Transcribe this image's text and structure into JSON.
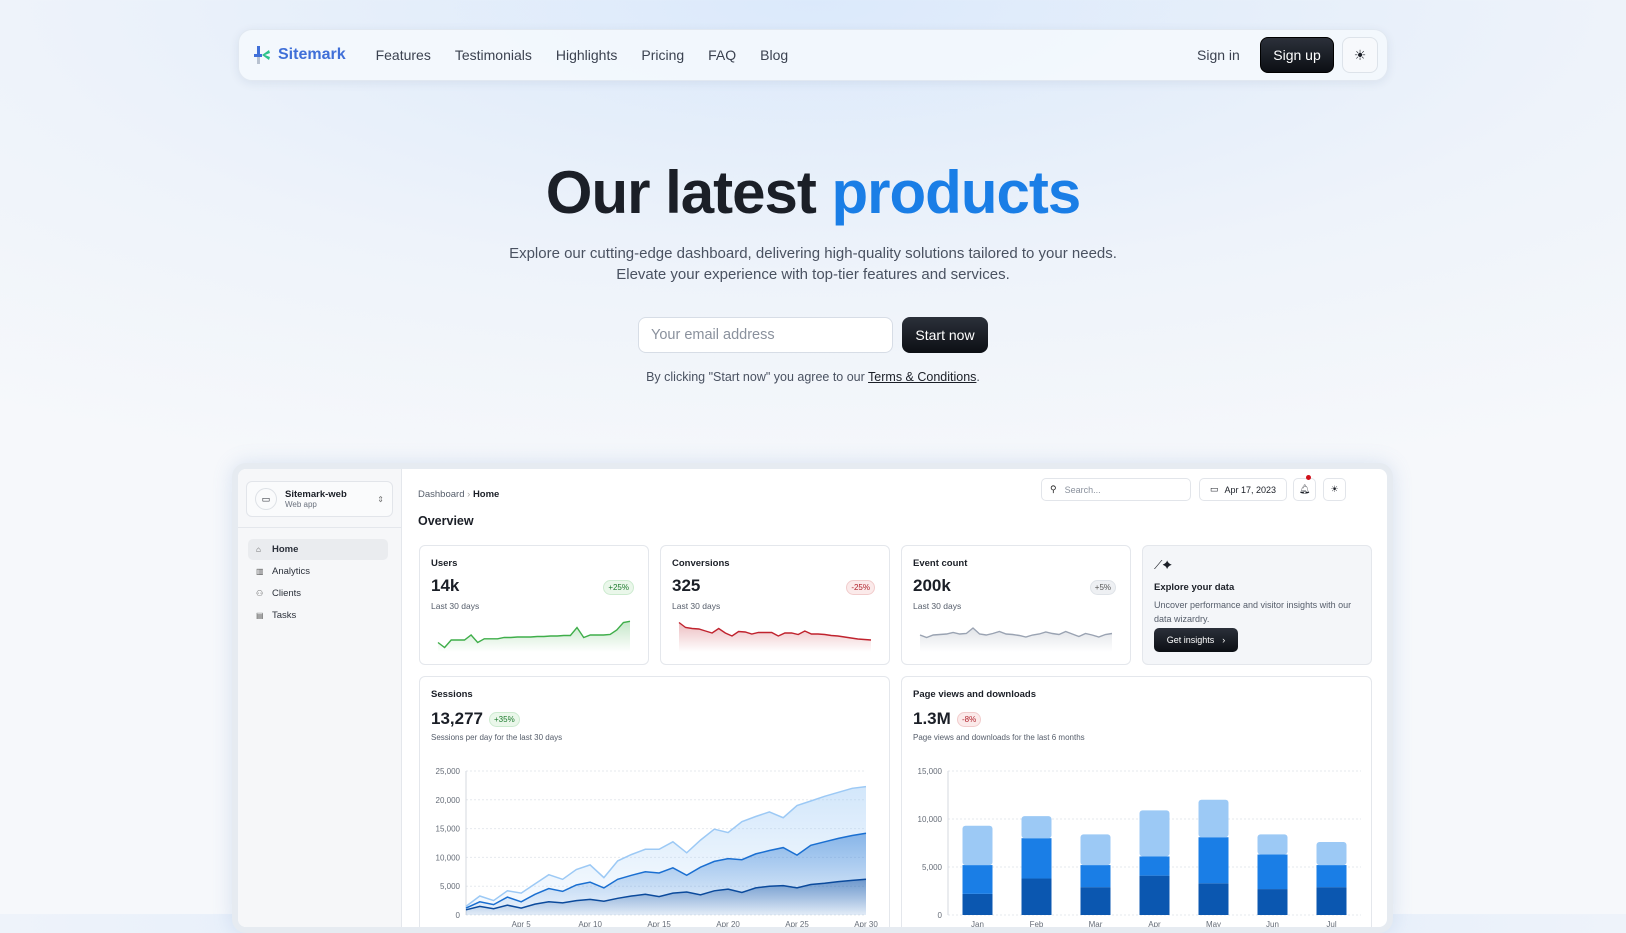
{
  "nav": {
    "brand": "Sitemark",
    "links": [
      "Features",
      "Testimonials",
      "Highlights",
      "Pricing",
      "FAQ",
      "Blog"
    ],
    "sign_in": "Sign in",
    "sign_up": "Sign up"
  },
  "hero": {
    "title_plain": "Our latest",
    "title_accent": "products",
    "subtitle_1": "Explore our cutting-edge dashboard, delivering high-quality solutions tailored to your needs.",
    "subtitle_2": "Elevate your experience with top-tier features and services.",
    "email_placeholder": "Your email address",
    "cta": "Start now",
    "terms_prefix": "By clicking \"Start now\" you agree to our",
    "terms_link": "Terms & Conditions",
    "terms_suffix": "."
  },
  "dashboard": {
    "project": {
      "name": "Sitemark-web",
      "type": "Web app"
    },
    "sidebar": [
      {
        "label": "Home",
        "icon": "home-icon",
        "active": true
      },
      {
        "label": "Analytics",
        "icon": "analytics-icon"
      },
      {
        "label": "Clients",
        "icon": "people-icon"
      },
      {
        "label": "Tasks",
        "icon": "clipboard-icon"
      }
    ],
    "breadcrumb": [
      "Dashboard",
      "Home"
    ],
    "heading": "Overview",
    "search_placeholder": "Search...",
    "date": "Apr 17, 2023",
    "stats": [
      {
        "title": "Users",
        "value": "14k",
        "badge": "+25%",
        "trend": "up",
        "period": "Last 30 days",
        "color": "#3fae4a",
        "spark": [
          3,
          1,
          4,
          4,
          4,
          6,
          3,
          4.5,
          4.5,
          4.5,
          5,
          5,
          5.2,
          5.2,
          5.2,
          5.4,
          5.4,
          5.6,
          5.6,
          5.8,
          5.8,
          9,
          5,
          6,
          6,
          6,
          6.2,
          8,
          11,
          11.5
        ]
      },
      {
        "title": "Conversions",
        "value": "325",
        "badge": "-25%",
        "trend": "down",
        "period": "Last 30 days",
        "color": "#c0232e",
        "spark": [
          11,
          9,
          8.6,
          8.4,
          7.6,
          6.8,
          8.6,
          6.8,
          5.6,
          7.4,
          7.2,
          6.4,
          7,
          7,
          7,
          5.6,
          6.8,
          6.8,
          6.2,
          7.6,
          6.4,
          6.4,
          6.2,
          5.8,
          5.6,
          5.2,
          4.8,
          4.4,
          4.2,
          4
        ]
      },
      {
        "title": "Event count",
        "value": "200k",
        "badge": "+5%",
        "trend": "neutral",
        "period": "Last 30 days",
        "color": "#9aa3b2",
        "spark": [
          6,
          5,
          6,
          6.2,
          6.4,
          7,
          6.4,
          6.6,
          8.8,
          6.4,
          6,
          6.6,
          7.4,
          6.4,
          6.2,
          5.8,
          5.2,
          6,
          6.4,
          7.2,
          6.6,
          6.2,
          7.4,
          6.4,
          5.4,
          6.6,
          6,
          5.2,
          6.2,
          6.6
        ]
      }
    ],
    "explore": {
      "title": "Explore your data",
      "text": "Uncover performance and visitor insights with our data wizardry.",
      "button": "Get insights"
    },
    "sessions": {
      "title": "Sessions",
      "value": "13,277",
      "badge": "+35%",
      "subtitle": "Sessions per day for the last 30 days"
    },
    "pageviews": {
      "title": "Page views and downloads",
      "value": "1.3M",
      "badge": "-8%",
      "subtitle": "Page views and downloads for the last 6 months"
    }
  },
  "chart_data": [
    {
      "type": "area",
      "ylim": [
        0,
        25000
      ],
      "yticks": [
        "0",
        "5,000",
        "10,000",
        "15,000",
        "20,000",
        "25,000"
      ],
      "xticks": [
        "Apr 5",
        "Apr 10",
        "Apr 15",
        "Apr 20",
        "Apr 25",
        "Apr 30"
      ],
      "grid": true,
      "x": [
        "Apr 1",
        "Apr 2",
        "Apr 3",
        "Apr 4",
        "Apr 5",
        "Apr 6",
        "Apr 7",
        "Apr 8",
        "Apr 9",
        "Apr 10",
        "Apr 11",
        "Apr 12",
        "Apr 13",
        "Apr 14",
        "Apr 15",
        "Apr 16",
        "Apr 17",
        "Apr 18",
        "Apr 19",
        "Apr 20",
        "Apr 21",
        "Apr 22",
        "Apr 23",
        "Apr 24",
        "Apr 25",
        "Apr 26",
        "Apr 27",
        "Apr 28",
        "Apr 29",
        "Apr 30"
      ],
      "series": [
        {
          "color": "#9cc9f5",
          "values": [
            1500,
            3300,
            2500,
            4200,
            3800,
            5400,
            7000,
            6200,
            7900,
            8700,
            6500,
            9400,
            10500,
            11400,
            11400,
            12700,
            10800,
            13000,
            14900,
            14300,
            16200,
            17100,
            17900,
            16900,
            19000,
            19800,
            20600,
            21300,
            22000,
            22300
          ]
        },
        {
          "color": "#1a6fd1",
          "values": [
            1200,
            2300,
            1800,
            3100,
            2300,
            3600,
            4600,
            4100,
            5200,
            5700,
            4700,
            6200,
            6900,
            7500,
            7300,
            8200,
            6900,
            8300,
            9300,
            9800,
            9600,
            10600,
            11200,
            11700,
            10400,
            12100,
            12700,
            13300,
            13800,
            14200
          ]
        },
        {
          "color": "#0b4a9c",
          "values": [
            900,
            1500,
            1100,
            1700,
            1200,
            1900,
            2300,
            2100,
            2500,
            2700,
            2400,
            2900,
            3300,
            3600,
            3200,
            3800,
            4000,
            3500,
            4200,
            4500,
            3900,
            4700,
            5000,
            5100,
            4700,
            5300,
            5500,
            5800,
            6000,
            6200
          ]
        }
      ]
    },
    {
      "type": "bar",
      "stacked": true,
      "ylim": [
        0,
        15000
      ],
      "yticks": [
        "0",
        "5,000",
        "10,000",
        "15,000"
      ],
      "categories": [
        "Jan",
        "Feb",
        "Mar",
        "Apr",
        "May",
        "Jun",
        "Jul"
      ],
      "grid": true,
      "series": [
        {
          "color": "#0b57b0",
          "values": [
            2200,
            3800,
            2900,
            4100,
            3300,
            2700,
            2900
          ]
        },
        {
          "color": "#1a7ee6",
          "values": [
            3000,
            4200,
            2300,
            2000,
            4800,
            3600,
            2300
          ]
        },
        {
          "color": "#9cc9f5",
          "values": [
            4100,
            2300,
            3200,
            4800,
            3900,
            2100,
            2400
          ]
        }
      ]
    }
  ]
}
